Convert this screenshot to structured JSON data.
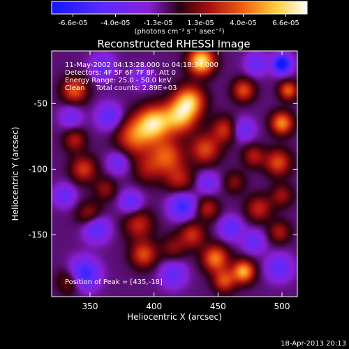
{
  "chart_data": {
    "type": "heatmap",
    "title": "Reconstructed RHESSI Image",
    "xlabel": "Heliocentric X (arcsec)",
    "ylabel": "Heliocentric Y (arcsec)",
    "xlim": [
      320,
      512
    ],
    "ylim": [
      -197,
      -10
    ],
    "xticks": [
      {
        "value": 350,
        "label": "350"
      },
      {
        "value": 400,
        "label": "400"
      },
      {
        "value": 450,
        "label": "450"
      },
      {
        "value": 500,
        "label": "500"
      }
    ],
    "yticks": [
      {
        "value": -50,
        "label": "-50"
      },
      {
        "value": -100,
        "label": "-100"
      },
      {
        "value": -150,
        "label": "-150"
      }
    ],
    "colorbar": {
      "ticks": [
        "-6.6e-05",
        "-4.0e-05",
        "-1.3e-05",
        "1.3e-05",
        "4.0e-05",
        "6.6e-05"
      ],
      "min": -6.6e-05,
      "max": 6.6e-05,
      "unit_label": "(photons cm⁻² s⁻¹ asec⁻²)"
    },
    "annotations": {
      "line1": "11-May-2002 04:13:28.000 to 04:18:34.000",
      "line2": "Detectors: 4F 5F 6F 7F 8F, Att 0",
      "line3": "Energy Range: 25.0 - 50.0 keV",
      "line4": "Clean     Total counts: 2.89E+03",
      "peak": "Position of Peak = [435,-18]"
    },
    "blobs": [
      {
        "x": 385,
        "y": -75,
        "a": 4e-05,
        "s": 10
      },
      {
        "x": 400,
        "y": -65,
        "a": 5.8e-05,
        "s": 9
      },
      {
        "x": 420,
        "y": -60,
        "a": 5.2e-05,
        "s": 9
      },
      {
        "x": 428,
        "y": -48,
        "a": 5e-05,
        "s": 8
      },
      {
        "x": 437,
        "y": -18,
        "a": 6.6e-05,
        "s": 7
      },
      {
        "x": 410,
        "y": -90,
        "a": 3.8e-05,
        "s": 9
      },
      {
        "x": 440,
        "y": -85,
        "a": 3.5e-05,
        "s": 8
      },
      {
        "x": 420,
        "y": -108,
        "a": 2.5e-05,
        "s": 8
      },
      {
        "x": 395,
        "y": -100,
        "a": 2e-05,
        "s": 8
      },
      {
        "x": 455,
        "y": -70,
        "a": 3e-05,
        "s": 7
      },
      {
        "x": 470,
        "y": -40,
        "a": 3.6e-05,
        "s": 6
      },
      {
        "x": 500,
        "y": -65,
        "a": 4.8e-05,
        "s": 6
      },
      {
        "x": 505,
        "y": -40,
        "a": 4e-05,
        "s": 5
      },
      {
        "x": 497,
        "y": -95,
        "a": 3.6e-05,
        "s": 7
      },
      {
        "x": 478,
        "y": -90,
        "a": 2.5e-05,
        "s": 6
      },
      {
        "x": 482,
        "y": -130,
        "a": 2.8e-05,
        "s": 7
      },
      {
        "x": 498,
        "y": -148,
        "a": 2.4e-05,
        "s": 6
      },
      {
        "x": 338,
        "y": -40,
        "a": 3.8e-05,
        "s": 7
      },
      {
        "x": 345,
        "y": -100,
        "a": 3.2e-05,
        "s": 7
      },
      {
        "x": 338,
        "y": -78,
        "a": 2.5e-05,
        "s": 6
      },
      {
        "x": 350,
        "y": -135,
        "a": 2.5e-05,
        "s": 7
      },
      {
        "x": 388,
        "y": -142,
        "a": 2.8e-05,
        "s": 8
      },
      {
        "x": 392,
        "y": -165,
        "a": 3.6e-05,
        "s": 7
      },
      {
        "x": 415,
        "y": -160,
        "a": 1.8e-05,
        "s": 7
      },
      {
        "x": 430,
        "y": -150,
        "a": 3e-05,
        "s": 7
      },
      {
        "x": 448,
        "y": -168,
        "a": 4.5e-05,
        "s": 7
      },
      {
        "x": 470,
        "y": -178,
        "a": 5.4e-05,
        "s": 6
      },
      {
        "x": 455,
        "y": -185,
        "a": 3.6e-05,
        "s": 6
      },
      {
        "x": 442,
        "y": -130,
        "a": 2.6e-05,
        "s": 6
      },
      {
        "x": 335,
        "y": -185,
        "a": 2.6e-05,
        "s": 7
      },
      {
        "x": 362,
        "y": -115,
        "a": 2e-05,
        "s": 6
      },
      {
        "x": 463,
        "y": -110,
        "a": 1.8e-05,
        "s": 6
      },
      {
        "x": 500,
        "y": -120,
        "a": 2.2e-05,
        "s": 6
      },
      {
        "x": 500,
        "y": -20,
        "a": -6.6e-05,
        "s": 5
      },
      {
        "x": 345,
        "y": -180,
        "a": -4.8e-05,
        "s": 8
      },
      {
        "x": 422,
        "y": -128,
        "a": -4.2e-05,
        "s": 7
      },
      {
        "x": 355,
        "y": -145,
        "a": -3.6e-05,
        "s": 7
      },
      {
        "x": 365,
        "y": -60,
        "a": -3e-05,
        "s": 7
      },
      {
        "x": 382,
        "y": -125,
        "a": -3e-05,
        "s": 6
      },
      {
        "x": 460,
        "y": -145,
        "a": -3.2e-05,
        "s": 6
      },
      {
        "x": 470,
        "y": -70,
        "a": -2.6e-05,
        "s": 6
      },
      {
        "x": 415,
        "y": -180,
        "a": -2.8e-05,
        "s": 7
      },
      {
        "x": 498,
        "y": -175,
        "a": -3e-05,
        "s": 7
      },
      {
        "x": 330,
        "y": -120,
        "a": -2.6e-05,
        "s": 6
      },
      {
        "x": 372,
        "y": -95,
        "a": -2.4e-05,
        "s": 6
      },
      {
        "x": 442,
        "y": -110,
        "a": -2.4e-05,
        "s": 6
      },
      {
        "x": 478,
        "y": -155,
        "a": -2.6e-05,
        "s": 6
      },
      {
        "x": 335,
        "y": -60,
        "a": -2.2e-05,
        "s": 6
      },
      {
        "x": 360,
        "y": -22,
        "a": -2.4e-05,
        "s": 7
      },
      {
        "x": 480,
        "y": -20,
        "a": -2.6e-05,
        "s": 6
      },
      {
        "x": 390,
        "y": -30,
        "a": -1.8e-05,
        "s": 6
      }
    ],
    "background_value": -8e-06
  },
  "footer": {
    "timestamp": "18-Apr-2013 20:13"
  }
}
